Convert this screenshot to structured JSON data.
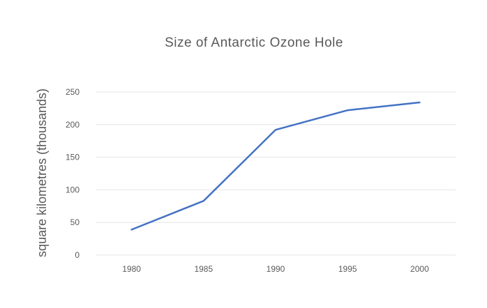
{
  "chart_data": {
    "type": "line",
    "title": "Size of Antarctic Ozone Hole",
    "xlabel": "",
    "ylabel": "square kilometres (thousands)",
    "categories": [
      "1980",
      "1985",
      "1990",
      "1995",
      "2000"
    ],
    "series": [
      {
        "values": [
          39,
          83,
          192,
          222,
          234
        ],
        "color": "#4472c4"
      }
    ],
    "ylim": [
      0,
      250
    ],
    "yticks": [
      0,
      50,
      100,
      150,
      200,
      250
    ],
    "grid": true,
    "legend": "none"
  }
}
